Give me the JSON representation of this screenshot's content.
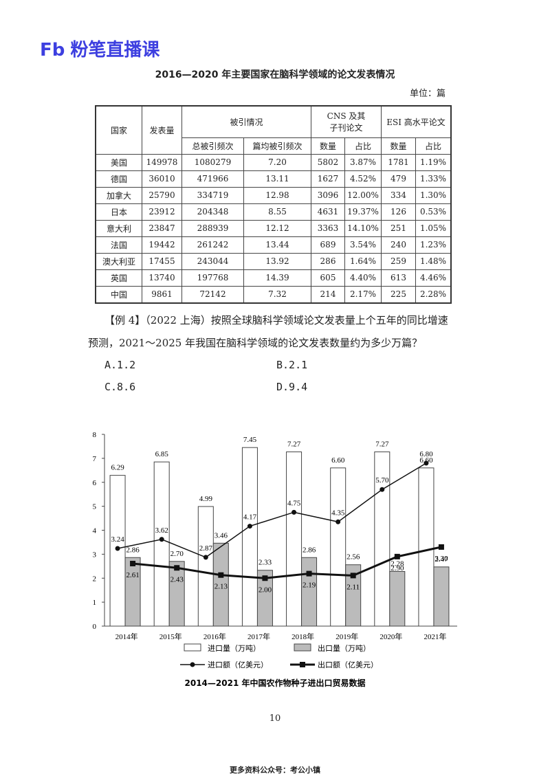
{
  "header": {
    "logo": "Fb",
    "brand": "粉笔直播课"
  },
  "table": {
    "title": "2016—2020 年主要国家在脑科学领域的论文发表情况",
    "unit": "单位：篇",
    "header": {
      "country": "国家",
      "count": "发表量",
      "citation": "被引情况",
      "total": "总被引频次",
      "avg": "篇均被引频次",
      "cns": [
        "CNS 及其",
        "子刊论文"
      ],
      "num1": "数量",
      "pct1": "占比",
      "esi": "ESI 高水平论文",
      "num2": "数量",
      "pct2": "占比"
    },
    "rows": [
      [
        "美国",
        "149978",
        "1080279",
        "7.20",
        "5802",
        "3.87%",
        "1781",
        "1.19%"
      ],
      [
        "德国",
        "36010",
        "471966",
        "13.11",
        "1627",
        "4.52%",
        "479",
        "1.33%"
      ],
      [
        "加拿大",
        "25790",
        "334719",
        "12.98",
        "3096",
        "12.00%",
        "334",
        "1.30%"
      ],
      [
        "日本",
        "23912",
        "204348",
        "8.55",
        "4631",
        "19.37%",
        "126",
        "0.53%"
      ],
      [
        "意大利",
        "23847",
        "288939",
        "12.12",
        "3363",
        "14.10%",
        "251",
        "1.05%"
      ],
      [
        "法国",
        "19442",
        "261242",
        "13.44",
        "689",
        "3.54%",
        "240",
        "1.23%"
      ],
      [
        "澳大利亚",
        "17455",
        "243044",
        "13.92",
        "286",
        "1.64%",
        "259",
        "1.48%"
      ],
      [
        "英国",
        "13740",
        "197768",
        "14.39",
        "605",
        "4.40%",
        "613",
        "4.46%"
      ],
      [
        "中国",
        "9861",
        "72142",
        "7.32",
        "214",
        "2.17%",
        "225",
        "2.28%"
      ]
    ]
  },
  "question": {
    "lines": [
      "【例 4】（2022 上海）按照全球脑科学领域论文发表量上个五年的同比增速",
      "预测，2021～2025 年我国在脑科学领域的论文发表数量约为多少万篇？"
    ],
    "options": [
      "A.1.2",
      "B.2.1",
      "C.8.6",
      "D.9.4"
    ]
  },
  "chart_data": {
    "type": "bar-line",
    "title": "2014—2021 年中国农作物种子进出口贸易数据",
    "categories": [
      "2014年",
      "2015年",
      "2016年",
      "2017年",
      "2018年",
      "2019年",
      "2020年",
      "2021年"
    ],
    "ylim": [
      0,
      8
    ],
    "yticks": [
      0,
      1,
      2,
      3,
      4,
      5,
      6,
      7,
      8
    ],
    "series": [
      {
        "name": "进口量（万吨）",
        "kind": "bar",
        "color": "#ffffff",
        "values": [
          6.29,
          6.85,
          4.99,
          7.45,
          7.27,
          6.6,
          7.27,
          6.6
        ],
        "value_labels": [
          "6.29",
          "6.85",
          "4.99",
          "7.45",
          "7.27",
          "6.60",
          "7.27",
          "6.60"
        ]
      },
      {
        "name": "出口量（万吨）",
        "kind": "bar",
        "color": "#bbbbbb",
        "values": [
          2.86,
          2.7,
          3.46,
          2.33,
          2.86,
          2.56,
          2.28,
          2.47
        ],
        "value_labels": [
          "2.86",
          "2.70",
          "3.46",
          "2.33",
          "2.86",
          "2.56",
          "2.28",
          "2.47"
        ]
      },
      {
        "name": "进口额（亿美元）",
        "kind": "line",
        "marker": "circle",
        "color": "#111111",
        "values": [
          3.24,
          3.62,
          2.87,
          4.17,
          4.75,
          4.35,
          5.7,
          6.8
        ],
        "value_labels": [
          "3.24",
          "3.62",
          "2.87",
          "4.17",
          "4.75",
          "4.35",
          "5.70",
          "6.80"
        ]
      },
      {
        "name": "出口额（亿美元）",
        "kind": "line",
        "marker": "square",
        "color": "#111111",
        "values": [
          2.61,
          2.43,
          2.13,
          2.0,
          2.19,
          2.11,
          2.9,
          3.3
        ],
        "value_labels": [
          "2.61",
          "2.43",
          "2.13",
          "2.00",
          "2.19",
          "2.11",
          "2.90",
          "3.30"
        ]
      }
    ]
  },
  "page_number": "10",
  "footer": "更多资料公众号：考公小镇"
}
